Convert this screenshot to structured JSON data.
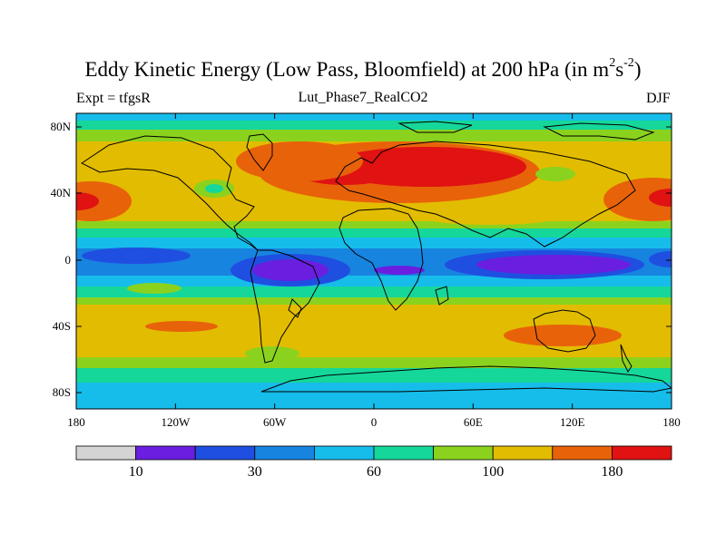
{
  "title": {
    "main": "Eddy Kinetic Energy (Low Pass, Bloomfield) at 200 hPa (in m",
    "sup1": "2",
    "mid": "s",
    "sup2": "-2",
    "end": ")"
  },
  "expt_label": "Expt = tfgsR",
  "run_label": "Lut_Phase7_RealCO2",
  "season_label": "DJF",
  "lat_ticks": [
    "80N",
    "40N",
    "0",
    "40S",
    "80S"
  ],
  "lon_ticks": [
    "180",
    "120W",
    "60W",
    "0",
    "60E",
    "120E",
    "180"
  ],
  "colorbar": {
    "colors": [
      "#d4d4d4",
      "#6a1ee0",
      "#1f4fe0",
      "#1784e0",
      "#16bdea",
      "#15d79a",
      "#8bd21e",
      "#e2bc00",
      "#e8620a",
      "#e01212"
    ],
    "labels": [
      "10",
      "30",
      "60",
      "100",
      "180"
    ]
  }
}
